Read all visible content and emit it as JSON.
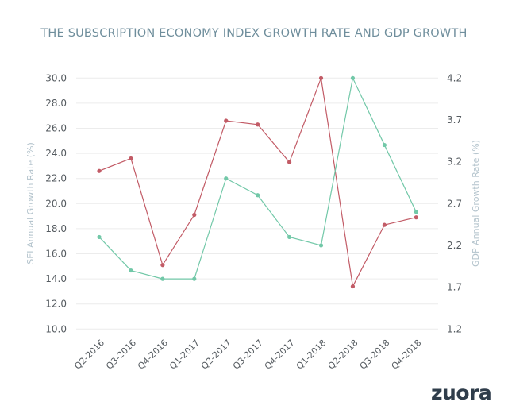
{
  "brand": {
    "logo_text": "zuora"
  },
  "chart_data": {
    "type": "line",
    "title": "THE SUBSCRIPTION ECONOMY INDEX GROWTH RATE AND GDP GROWTH",
    "xlabel": "",
    "ylabel": "SEI Annual Growth Rate (%)",
    "ylabel_right": "GDP Annual Growth Rate (%)",
    "categories": [
      "Q2-2016",
      "Q3-2016",
      "Q4-2016",
      "Q1-2017",
      "Q2-2017",
      "Q3-2017",
      "Q4-2017",
      "Q1-2018",
      "Q2-2018",
      "Q3-2018",
      "Q4-2018"
    ],
    "ylim": [
      10.0,
      30.0
    ],
    "yticks": [
      "30.0",
      "28.0",
      "26.0",
      "24.0",
      "22.0",
      "20.0",
      "18.0",
      "16.0",
      "14.0",
      "12.0",
      "10.0"
    ],
    "ylim_right": [
      1.2,
      4.2
    ],
    "yticks_right": [
      "4.2",
      "3.7",
      "3.2",
      "2.7",
      "2.2",
      "1.7",
      "1.2"
    ],
    "grid": true,
    "legend": "none",
    "series": [
      {
        "name": "SEI Annual Growth Rate",
        "axis": "left",
        "color": "#c25b66",
        "values": [
          22.6,
          23.6,
          15.1,
          19.1,
          26.6,
          26.3,
          23.3,
          30.0,
          13.4,
          18.3,
          18.9
        ]
      },
      {
        "name": "GDP Annual Growth Rate",
        "axis": "right",
        "color": "#72c8a8",
        "values": [
          2.3,
          1.9,
          1.8,
          1.8,
          3.0,
          2.8,
          2.3,
          2.2,
          4.2,
          3.4,
          2.6
        ]
      }
    ]
  }
}
